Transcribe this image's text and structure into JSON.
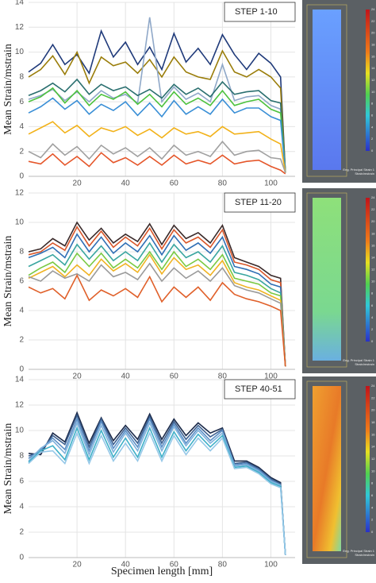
{
  "chart_data": [
    {
      "type": "line",
      "annotation": "STEP 1-10",
      "ylabel": "Mean Strain/mstrain",
      "xlim": [
        0,
        110
      ],
      "xticks": [
        20,
        40,
        60,
        80,
        100
      ],
      "ylim": [
        0,
        14
      ],
      "yticks": [
        0,
        2,
        4,
        6,
        8,
        10,
        12,
        14
      ],
      "grid": true,
      "x": [
        0,
        5,
        10,
        15,
        20,
        25,
        30,
        35,
        40,
        45,
        50,
        55,
        60,
        65,
        70,
        75,
        80,
        85,
        90,
        95,
        100,
        104,
        106
      ],
      "series": [
        {
          "color": "#1f3a7a",
          "values": [
            8.4,
            9.1,
            10.6,
            9.0,
            9.8,
            8.3,
            11.7,
            9.6,
            10.8,
            9.0,
            10.4,
            8.6,
            11.5,
            9.2,
            10.3,
            9.0,
            11.4,
            9.8,
            8.6,
            9.9,
            9.1,
            8.0,
            0.3
          ]
        },
        {
          "color": "#9a7d0a",
          "values": [
            8.0,
            8.6,
            9.7,
            8.2,
            10.0,
            7.5,
            9.6,
            8.9,
            9.2,
            8.3,
            9.4,
            8.0,
            9.6,
            8.4,
            8.0,
            7.8,
            10.1,
            8.4,
            8.0,
            8.6,
            8.0,
            7.1,
            0.3
          ]
        },
        {
          "color": "#8fa8c8",
          "values": [
            6.2,
            6.5,
            7.0,
            6.1,
            6.8,
            6.0,
            6.9,
            6.3,
            6.6,
            5.9,
            12.8,
            6.0,
            7.2,
            6.2,
            6.7,
            6.0,
            9.0,
            6.1,
            6.4,
            6.5,
            5.7,
            5.4,
            0.3
          ]
        },
        {
          "color": "#2a6f6f",
          "values": [
            6.5,
            6.9,
            7.5,
            6.8,
            7.8,
            6.6,
            7.4,
            6.9,
            7.2,
            6.5,
            7.0,
            6.3,
            7.4,
            6.6,
            7.1,
            6.4,
            7.6,
            6.6,
            6.8,
            6.9,
            6.1,
            5.9,
            0.3
          ]
        },
        {
          "color": "#4dc23d",
          "values": [
            6.0,
            6.4,
            7.1,
            5.9,
            6.9,
            5.7,
            6.6,
            6.2,
            6.8,
            5.8,
            6.6,
            5.6,
            6.8,
            5.8,
            6.3,
            5.7,
            6.9,
            5.7,
            6.0,
            6.2,
            5.4,
            5.1,
            0.3
          ]
        },
        {
          "color": "#3a8fd6",
          "values": [
            5.1,
            5.6,
            6.3,
            5.4,
            6.1,
            5.0,
            5.8,
            5.3,
            6.0,
            4.9,
            5.9,
            4.8,
            6.1,
            5.0,
            5.6,
            5.0,
            6.2,
            5.1,
            5.5,
            5.5,
            4.8,
            4.5,
            0.3
          ]
        },
        {
          "color": "#f2b21a",
          "values": [
            3.4,
            3.9,
            4.4,
            3.5,
            4.1,
            3.2,
            3.9,
            3.6,
            4.0,
            3.3,
            3.8,
            3.1,
            3.9,
            3.4,
            3.6,
            3.2,
            4.0,
            3.4,
            3.5,
            3.6,
            3.0,
            2.6,
            0.3
          ]
        },
        {
          "color": "#a0a0a0",
          "values": [
            2.0,
            1.5,
            2.6,
            1.7,
            2.4,
            1.4,
            2.5,
            1.8,
            2.3,
            1.6,
            2.3,
            1.4,
            2.5,
            1.7,
            2.0,
            1.6,
            2.8,
            1.7,
            2.0,
            2.1,
            1.5,
            1.4,
            0.3
          ]
        },
        {
          "color": "#e5562a",
          "values": [
            1.2,
            1.0,
            1.8,
            0.9,
            1.6,
            0.8,
            1.9,
            1.1,
            1.5,
            0.9,
            1.6,
            0.9,
            1.7,
            1.0,
            1.3,
            1.0,
            1.7,
            1.0,
            1.2,
            1.3,
            0.8,
            0.5,
            0.2
          ]
        }
      ],
      "colorbar": {
        "ticks": [
          24,
          22,
          20,
          18,
          16,
          14,
          12,
          10,
          8,
          6,
          4,
          2,
          0
        ],
        "label": [
          "Eng. Principal Strain 1",
          "Strain/mstrain"
        ]
      }
    },
    {
      "type": "line",
      "annotation": "STEP 11-20",
      "ylabel": "Mean Strain/mstrain",
      "xlim": [
        0,
        110
      ],
      "xticks": [
        20,
        40,
        60,
        80,
        100
      ],
      "ylim": [
        0,
        12
      ],
      "yticks": [
        0,
        2,
        4,
        6,
        8,
        10,
        12
      ],
      "grid": true,
      "x": [
        0,
        5,
        10,
        15,
        20,
        25,
        30,
        35,
        40,
        45,
        50,
        55,
        60,
        65,
        70,
        75,
        80,
        85,
        90,
        95,
        100,
        104,
        106
      ],
      "series": [
        {
          "color": "#3a2a2a",
          "values": [
            8.0,
            8.2,
            8.9,
            8.4,
            10.0,
            8.8,
            9.6,
            8.6,
            9.2,
            8.7,
            9.9,
            8.5,
            9.8,
            8.9,
            9.3,
            8.6,
            9.8,
            7.6,
            7.3,
            7.0,
            6.4,
            6.2,
            0.2
          ]
        },
        {
          "color": "#d9572b",
          "values": [
            7.8,
            8.0,
            8.6,
            8.1,
            9.7,
            8.4,
            9.4,
            8.3,
            9.0,
            8.4,
            9.6,
            8.2,
            9.5,
            8.6,
            9.0,
            8.3,
            9.5,
            7.3,
            7.1,
            6.8,
            6.1,
            5.9,
            0.2
          ]
        },
        {
          "color": "#2f6fb5",
          "values": [
            7.6,
            7.9,
            8.3,
            7.6,
            9.2,
            8.0,
            9.0,
            7.9,
            8.6,
            8.0,
            9.1,
            7.8,
            9.1,
            8.1,
            8.6,
            7.9,
            9.0,
            7.0,
            6.8,
            6.5,
            5.8,
            5.6,
            0.2
          ]
        },
        {
          "color": "#3aa6a0",
          "values": [
            7.0,
            7.4,
            7.8,
            7.1,
            8.5,
            7.5,
            8.4,
            7.4,
            8.0,
            7.4,
            8.6,
            7.3,
            8.5,
            7.6,
            8.0,
            7.3,
            8.4,
            6.6,
            6.4,
            6.1,
            5.5,
            5.2,
            0.2
          ]
        },
        {
          "color": "#7ac943",
          "values": [
            6.4,
            6.9,
            7.3,
            6.6,
            7.9,
            7.0,
            7.9,
            6.9,
            7.5,
            6.9,
            8.0,
            6.8,
            8.0,
            7.0,
            7.5,
            6.8,
            7.8,
            6.2,
            6.0,
            5.8,
            5.2,
            5.0,
            0.2
          ]
        },
        {
          "color": "#f0b323",
          "values": [
            6.2,
            6.6,
            7.0,
            6.3,
            7.1,
            6.4,
            7.5,
            6.7,
            7.2,
            6.6,
            7.8,
            6.5,
            7.6,
            6.8,
            7.1,
            6.4,
            7.4,
            5.9,
            5.6,
            5.4,
            5.0,
            4.7,
            0.2
          ]
        },
        {
          "color": "#9a9a9a",
          "values": [
            6.3,
            6.0,
            6.7,
            6.2,
            6.5,
            6.0,
            7.1,
            6.3,
            6.6,
            6.1,
            7.2,
            6.0,
            6.9,
            6.2,
            6.7,
            6.0,
            6.9,
            5.7,
            5.4,
            5.2,
            4.8,
            4.5,
            0.2
          ]
        },
        {
          "color": "#e0602a",
          "values": [
            5.6,
            5.2,
            5.5,
            4.8,
            6.4,
            4.7,
            5.4,
            5.0,
            5.5,
            4.9,
            6.3,
            4.6,
            5.6,
            4.9,
            5.6,
            4.7,
            5.9,
            5.1,
            4.8,
            4.6,
            4.3,
            4.0,
            0.2
          ]
        }
      ],
      "colorbar": {
        "ticks": [
          24,
          22,
          20,
          18,
          16,
          14,
          12,
          10,
          8,
          6,
          4,
          2,
          0
        ],
        "label": [
          "Eng. Principal Strain 1",
          "Strain/mstrain"
        ]
      }
    },
    {
      "type": "line",
      "annotation": "STEP 40-51",
      "ylabel": "Mean Strain/mstrain",
      "xlabel": "Specimen length [mm]",
      "xlim": [
        0,
        110
      ],
      "xticks": [
        20,
        40,
        60,
        80,
        100
      ],
      "ylim": [
        0,
        14
      ],
      "yticks": [
        0,
        2,
        4,
        6,
        8,
        10,
        12,
        14
      ],
      "grid": true,
      "x": [
        0,
        5,
        10,
        15,
        20,
        25,
        30,
        35,
        40,
        45,
        50,
        55,
        60,
        65,
        70,
        75,
        80,
        85,
        90,
        95,
        100,
        104,
        106
      ],
      "series": [
        {
          "color": "#1b2a4a",
          "values": [
            8.2,
            8.1,
            9.8,
            9.1,
            11.4,
            9.0,
            11.0,
            9.2,
            10.4,
            9.3,
            11.3,
            9.3,
            10.9,
            9.6,
            10.6,
            9.8,
            10.2,
            7.6,
            7.6,
            7.1,
            6.3,
            5.9,
            0.2
          ]
        },
        {
          "color": "#3b5f8f",
          "values": [
            8.0,
            8.3,
            9.6,
            8.9,
            11.2,
            8.7,
            10.9,
            8.9,
            10.2,
            9.0,
            11.1,
            9.0,
            10.7,
            9.3,
            10.4,
            9.5,
            10.1,
            7.4,
            7.5,
            7.0,
            6.2,
            5.8,
            0.2
          ]
        },
        {
          "color": "#5b8fc7",
          "values": [
            7.8,
            8.5,
            9.4,
            8.5,
            10.9,
            8.4,
            10.7,
            8.6,
            10.0,
            8.7,
            10.9,
            8.7,
            10.5,
            9.0,
            10.2,
            9.2,
            10.0,
            7.3,
            7.4,
            6.9,
            6.1,
            5.7,
            0.2
          ]
        },
        {
          "color": "#7fb2dc",
          "values": [
            7.6,
            8.6,
            9.2,
            8.2,
            10.6,
            8.1,
            10.4,
            8.3,
            9.8,
            8.4,
            10.6,
            8.4,
            10.3,
            8.8,
            10.0,
            9.0,
            9.8,
            7.2,
            7.3,
            6.8,
            6.0,
            5.7,
            0.2
          ]
        },
        {
          "color": "#3fb0c8",
          "values": [
            7.5,
            8.4,
            8.8,
            7.7,
            10.2,
            7.7,
            10.0,
            7.9,
            9.4,
            7.9,
            10.2,
            7.9,
            9.9,
            8.4,
            9.7,
            8.7,
            9.6,
            7.1,
            7.2,
            6.7,
            5.9,
            5.6,
            0.2
          ]
        },
        {
          "color": "#96c8e8",
          "values": [
            7.4,
            8.3,
            8.4,
            7.4,
            9.8,
            7.4,
            9.6,
            7.6,
            9.0,
            7.6,
            9.8,
            7.6,
            9.6,
            8.1,
            9.4,
            8.4,
            9.4,
            7.0,
            7.1,
            6.6,
            5.8,
            5.5,
            0.2
          ]
        }
      ],
      "colorbar": {
        "ticks": [
          24,
          22,
          20,
          18,
          16,
          14,
          12,
          10,
          8,
          6,
          4,
          2,
          0
        ],
        "label": [
          "Eng. Principal Strain 1",
          "Strain/mstrain"
        ]
      }
    }
  ]
}
